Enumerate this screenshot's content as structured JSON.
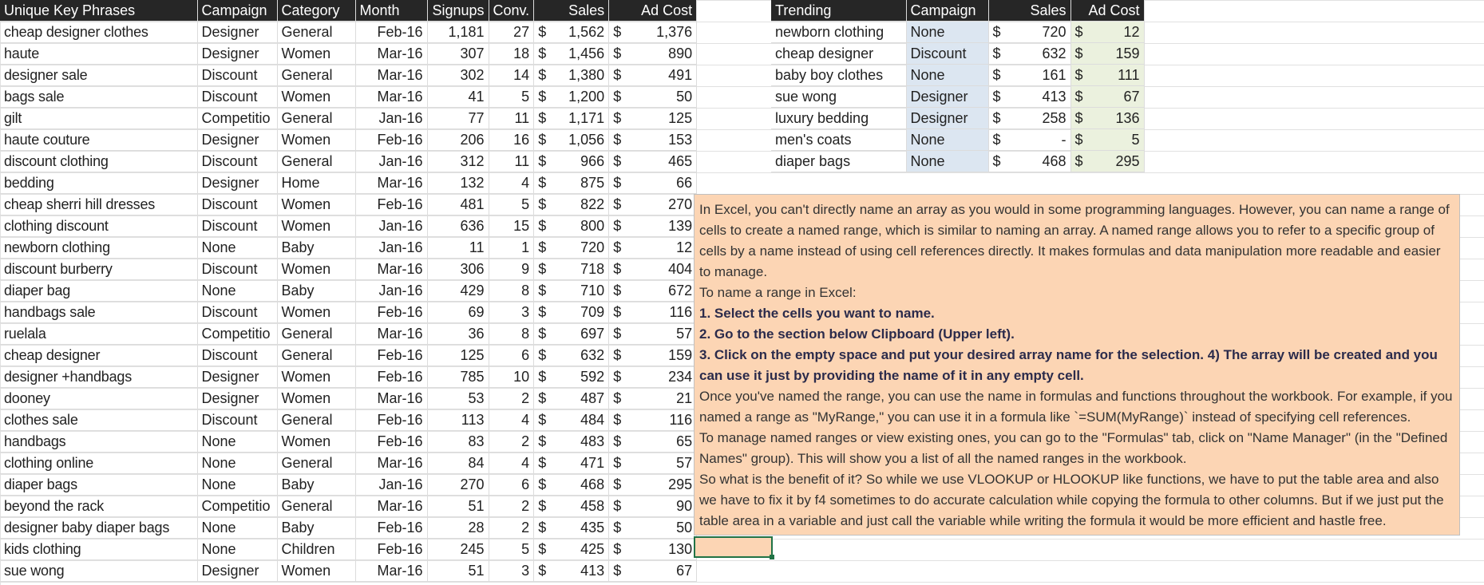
{
  "main_table": {
    "headers": [
      "Unique Key Phrases",
      "Campaign",
      "Category",
      "Month",
      "Signups",
      "Conv.",
      "Sales",
      "Ad Cost"
    ],
    "rows": [
      [
        "cheap designer clothes",
        "Designer",
        "General",
        "Feb-16",
        "1,181",
        "27",
        "1,562",
        "1,376"
      ],
      [
        "haute",
        "Designer",
        "Women",
        "Mar-16",
        "307",
        "18",
        "1,456",
        "890"
      ],
      [
        "designer sale",
        "Discount",
        "General",
        "Mar-16",
        "302",
        "14",
        "1,380",
        "491"
      ],
      [
        "bags sale",
        "Discount",
        "Women",
        "Mar-16",
        "41",
        "5",
        "1,200",
        "50"
      ],
      [
        "gilt",
        "Competitio",
        "General",
        "Jan-16",
        "77",
        "11",
        "1,171",
        "125"
      ],
      [
        "haute couture",
        "Designer",
        "Women",
        "Feb-16",
        "206",
        "16",
        "1,056",
        "153"
      ],
      [
        "discount clothing",
        "Discount",
        "General",
        "Jan-16",
        "312",
        "11",
        "966",
        "465"
      ],
      [
        "bedding",
        "Designer",
        "Home",
        "Mar-16",
        "132",
        "4",
        "875",
        "66"
      ],
      [
        "cheap sherri hill dresses",
        "Discount",
        "Women",
        "Feb-16",
        "481",
        "5",
        "822",
        "270"
      ],
      [
        "clothing discount",
        "Discount",
        "Women",
        "Jan-16",
        "636",
        "15",
        "800",
        "139"
      ],
      [
        "newborn clothing",
        "None",
        "Baby",
        "Jan-16",
        "11",
        "1",
        "720",
        "12"
      ],
      [
        "discount burberry",
        "Discount",
        "Women",
        "Mar-16",
        "306",
        "9",
        "718",
        "404"
      ],
      [
        "diaper bag",
        "None",
        "Baby",
        "Jan-16",
        "429",
        "8",
        "710",
        "672"
      ],
      [
        "handbags sale",
        "Discount",
        "Women",
        "Feb-16",
        "69",
        "3",
        "709",
        "116"
      ],
      [
        "ruelala",
        "Competitio",
        "General",
        "Mar-16",
        "36",
        "8",
        "697",
        "57"
      ],
      [
        "cheap designer",
        "Discount",
        "General",
        "Feb-16",
        "125",
        "6",
        "632",
        "159"
      ],
      [
        "designer +handbags",
        "Designer",
        "Women",
        "Feb-16",
        "785",
        "10",
        "592",
        "234"
      ],
      [
        "dooney",
        "Designer",
        "Women",
        "Mar-16",
        "53",
        "2",
        "487",
        "21"
      ],
      [
        "clothes sale",
        "Discount",
        "General",
        "Feb-16",
        "113",
        "4",
        "484",
        "116"
      ],
      [
        "handbags",
        "None",
        "Women",
        "Feb-16",
        "83",
        "2",
        "483",
        "65"
      ],
      [
        "clothing online",
        "None",
        "General",
        "Mar-16",
        "84",
        "4",
        "471",
        "57"
      ],
      [
        "diaper bags",
        "None",
        "Baby",
        "Jan-16",
        "270",
        "6",
        "468",
        "295"
      ],
      [
        "beyond the rack",
        "Competitio",
        "General",
        "Mar-16",
        "51",
        "2",
        "458",
        "90"
      ],
      [
        "designer baby diaper bags",
        "None",
        "Baby",
        "Feb-16",
        "28",
        "2",
        "435",
        "50"
      ],
      [
        "kids clothing",
        "None",
        "Children",
        "Feb-16",
        "245",
        "5",
        "425",
        "130"
      ],
      [
        "sue wong",
        "Designer",
        "Women",
        "Mar-16",
        "51",
        "3",
        "413",
        "67"
      ]
    ]
  },
  "currency_symbol": "$",
  "trending_table": {
    "headers": [
      "Trending",
      "Campaign",
      "Sales",
      "Ad Cost"
    ],
    "rows": [
      [
        "newborn clothing",
        "None",
        "720",
        "12"
      ],
      [
        "cheap designer",
        "Discount",
        "632",
        "159"
      ],
      [
        "baby boy clothes",
        "None",
        "161",
        "111"
      ],
      [
        "sue wong",
        "Designer",
        "413",
        "67"
      ],
      [
        "luxury bedding",
        "Designer",
        "258",
        "136"
      ],
      [
        "men's coats",
        "None",
        "-",
        "5"
      ],
      [
        "diaper bags",
        "None",
        "468",
        "295"
      ]
    ]
  },
  "note": {
    "p1": "In Excel, you can't directly name an array as you would in some programming languages. However, you can name a range of cells to create a named range, which is similar to naming an array. A named range allows you to refer to a specific group of cells by a name instead of using cell references directly. It makes formulas and data manipulation more readable and easier to manage.",
    "p2": "To name a range in Excel:",
    "step1": "1. Select the cells you want to name.",
    "step2": "2. Go to the section below Clipboard (Upper left).",
    "step3": "3. Click on the empty space and put your desired array name for the selection. 4) The array will be created and you can use it just by providing the name of it in any empty cell.",
    "p3": "Once you've named the range, you can use the name in formulas and functions throughout the workbook. For example, if you named a range as \"MyRange,\" you can use it in a formula like `=SUM(MyRange)` instead of specifying cell references.",
    "p4": "To manage named ranges or view existing ones, you can go to the \"Formulas\" tab, click on \"Name Manager\" (in the \"Defined Names\" group). This will show you a list of all the named ranges in the workbook.",
    "p5": "So what is the benefit of it? So while we use VLOOKUP or HLOOKUP like functions, we have to put the table area and also we have to fix it by f4 sometimes to do accurate calculation while copying the formula to other columns. But if we just put the table area in a variable and just call the variable while writing the formula it would be more efficient and hastle free."
  },
  "colors": {
    "header_bg": "#262626",
    "note_bg": "#fcd5b4",
    "campaign_fill": "#dce6f1",
    "adcost_fill": "#ebf1de",
    "selection": "#217346"
  }
}
